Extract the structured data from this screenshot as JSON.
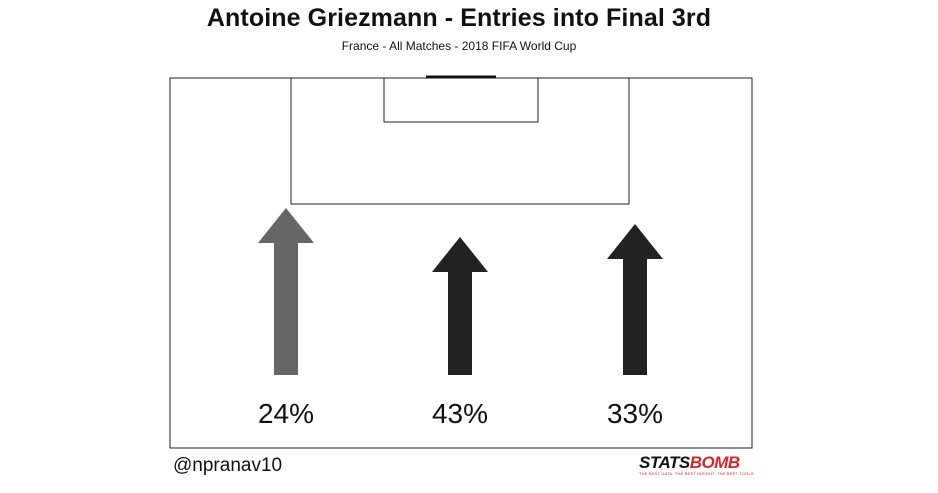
{
  "header": {
    "title": "Antoine Griezmann - Entries into Final 3rd",
    "subtitle": "France - All Matches - 2018 FIFA World Cup"
  },
  "footer": {
    "handle": "@npranav10",
    "logo_text_part1": "STATS",
    "logo_text_part2": "BOMB",
    "logo_tagline": "THE BEST DATA. THE BEST INSIGHT. THE BEST TOOLS."
  },
  "colors": {
    "left_arrow": "#666666",
    "center_arrow": "#222222",
    "right_arrow": "#222222",
    "logo_accent": "#d7262b"
  },
  "chart_data": {
    "type": "bar",
    "categories": [
      "Left",
      "Center",
      "Right"
    ],
    "values": [
      24,
      43,
      33
    ],
    "labels": [
      "24%",
      "43%",
      "33%"
    ],
    "title": "Antoine Griezmann - Entries into Final 3rd",
    "subtitle": "France - All Matches - 2018 FIFA World Cup",
    "xlabel": "",
    "ylabel": "",
    "grid": false,
    "legend": "none"
  }
}
